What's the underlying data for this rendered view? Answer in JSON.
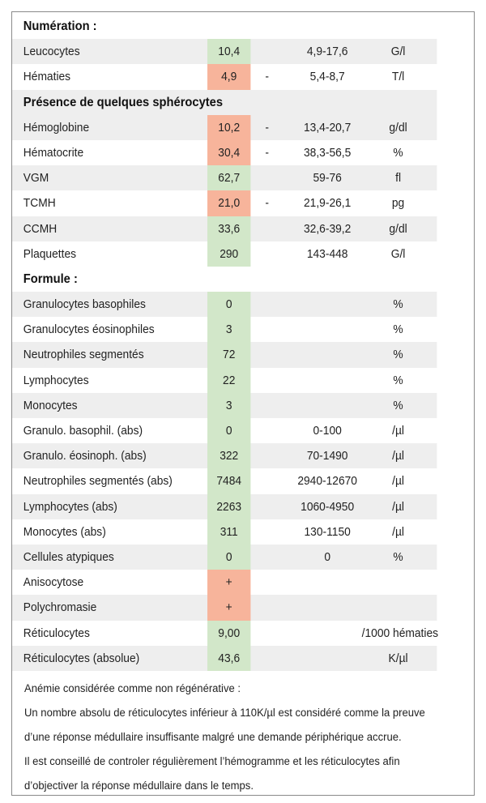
{
  "sections": {
    "numeration": "Numération :",
    "spherocytes": "Présence de quelques sphérocytes",
    "formule": "Formule :"
  },
  "rows": {
    "leucocytes": {
      "label": "Leucocytes",
      "value": "10,4",
      "dash": "",
      "ref": "4,9-17,6",
      "unit": "G/l"
    },
    "hematies": {
      "label": "Hématies",
      "value": "4,9",
      "dash": "-",
      "ref": "5,4-8,7",
      "unit": "T/l"
    },
    "hemoglobine": {
      "label": "Hémoglobine",
      "value": "10,2",
      "dash": "-",
      "ref": "13,4-20,7",
      "unit": "g/dl"
    },
    "hematocrite": {
      "label": "Hématocrite",
      "value": "30,4",
      "dash": "-",
      "ref": "38,3-56,5",
      "unit": "%"
    },
    "vgm": {
      "label": "VGM",
      "value": "62,7",
      "dash": "",
      "ref": "59-76",
      "unit": "fl"
    },
    "tcmh": {
      "label": "TCMH",
      "value": "21,0",
      "dash": "-",
      "ref": "21,9-26,1",
      "unit": "pg"
    },
    "ccmh": {
      "label": "CCMH",
      "value": "33,6",
      "dash": "",
      "ref": "32,6-39,2",
      "unit": "g/dl"
    },
    "plaquettes": {
      "label": "Plaquettes",
      "value": "290",
      "dash": "",
      "ref": "143-448",
      "unit": "G/l"
    },
    "gran_baso": {
      "label": "Granulocytes basophiles",
      "value": "0",
      "dash": "",
      "ref": "",
      "unit": "%"
    },
    "gran_eosino": {
      "label": "Granulocytes éosinophiles",
      "value": "3",
      "dash": "",
      "ref": "",
      "unit": "%"
    },
    "neutro_seg": {
      "label": "Neutrophiles segmentés",
      "value": "72",
      "dash": "",
      "ref": "",
      "unit": "%"
    },
    "lympho": {
      "label": "Lymphocytes",
      "value": "22",
      "dash": "",
      "ref": "",
      "unit": "%"
    },
    "mono": {
      "label": "Monocytes",
      "value": "3",
      "dash": "",
      "ref": "",
      "unit": "%"
    },
    "gran_baso_abs": {
      "label": "Granulo. basophil. (abs)",
      "value": "0",
      "dash": "",
      "ref": "0-100",
      "unit": "/µl"
    },
    "gran_eosino_abs": {
      "label": "Granulo. éosinoph. (abs)",
      "value": "322",
      "dash": "",
      "ref": "70-1490",
      "unit": "/µl"
    },
    "neutro_seg_abs": {
      "label": "Neutrophiles segmentés (abs)",
      "value": "7484",
      "dash": "",
      "ref": "2940-12670",
      "unit": "/µl"
    },
    "lympho_abs": {
      "label": "Lymphocytes (abs)",
      "value": "2263",
      "dash": "",
      "ref": "1060-4950",
      "unit": "/µl"
    },
    "mono_abs": {
      "label": "Monocytes (abs)",
      "value": "311",
      "dash": "",
      "ref": "130-1150",
      "unit": "/µl"
    },
    "atypiques": {
      "label": "Cellules atypiques",
      "value": "0",
      "dash": "",
      "ref": "0",
      "unit": "%"
    },
    "anisocytose": {
      "label": "Anisocytose",
      "value": "+",
      "dash": "",
      "ref": "",
      "unit": ""
    },
    "polychromasie": {
      "label": "Polychromasie",
      "value": "+",
      "dash": "",
      "ref": "",
      "unit": ""
    },
    "reticulo": {
      "label": "Réticulocytes",
      "value": "9,00",
      "dash": "",
      "ref": "",
      "unit": "/1000 hématies"
    },
    "reticulo_abs": {
      "label": "Réticulocytes (absolue)",
      "value": "43,6",
      "dash": "",
      "ref": "",
      "unit": "K/µl"
    }
  },
  "notes": [
    "Anémie considérée comme non régénérative :",
    "Un nombre absolu de réticulocytes inférieur à 110K/µl est considéré comme la preuve",
    "d’une réponse médullaire insuffisante malgré une demande périphérique accrue.",
    "Il est conseillé de controler régulièrement l’hémogramme et les réticulocytes afin",
    "d’objectiver la réponse médullaire dans le temps."
  ],
  "colors": {
    "normal_fill": "#d2e7c9",
    "abnormal_fill": "#f7b49b",
    "stripe": "#eeeeee"
  }
}
